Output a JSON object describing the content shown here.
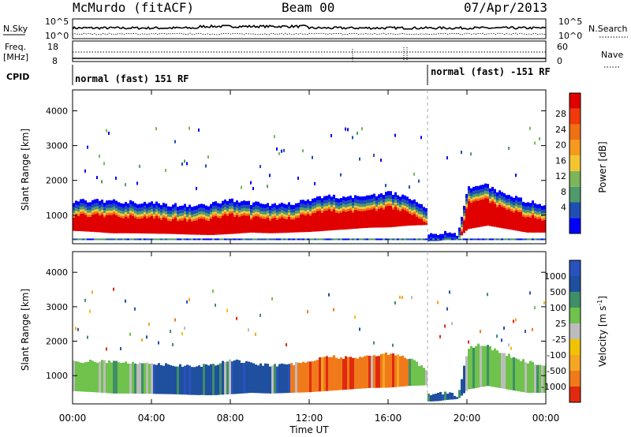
{
  "header": {
    "station": "McMurdo (fitACF)",
    "beam": "Beam 00",
    "date": "07/Apr/2013"
  },
  "top_panels": {
    "nsky_label": "N.Sky",
    "nsky_ticks": [
      "10^5",
      "10^0"
    ],
    "nsearch_label": "N.Search",
    "nsearch_ticks": [
      "10^5",
      "10^0"
    ],
    "freq_label": "Freq.",
    "freq_unit": "[MHz]",
    "freq_ticks": [
      "18",
      "8"
    ],
    "nave_label": "Nave",
    "nave_ticks": [
      "60",
      "0"
    ],
    "cpid_label": "CPID",
    "cpid_segments": [
      {
        "text": "normal (fast) 151 RF",
        "start_hour": 0,
        "end_hour": 18
      },
      {
        "text": "normal (fast) -151 RF",
        "start_hour": 18,
        "end_hour": 24
      }
    ]
  },
  "colorbars": {
    "power": {
      "label": "Power [dB]",
      "ticks": [
        "28",
        "24",
        "20",
        "16",
        "12",
        "8",
        "4"
      ],
      "colors": [
        "#0000ff",
        "#1f4fb0",
        "#4e9a6a",
        "#7db55a",
        "#f2c531",
        "#f59a1e",
        "#f07014",
        "#f03a0a",
        "#e00000"
      ]
    },
    "velocity": {
      "label": "Velocity [m s",
      "label_sup": "-1",
      "label_end": "]",
      "ticks": [
        "1000",
        "500",
        "100",
        "25",
        "-25",
        "-100",
        "-500",
        "-1000"
      ],
      "colors": [
        "#2a52be",
        "#1f4f9f",
        "#3e8f66",
        "#6fc24c",
        "#bcbcbc",
        "#f0c200",
        "#f5a623",
        "#f07a1a",
        "#e02a10"
      ]
    }
  },
  "x_axis_label": "Time UT",
  "chart_data": [
    {
      "type": "heatmap",
      "panel": "power",
      "ylabel": "Slant Range [km]",
      "xlabel": "",
      "x_range": [
        0,
        24
      ],
      "ylim": [
        180,
        4600
      ],
      "yticks": [
        "4000",
        "3000",
        "2000",
        "1000"
      ],
      "xticks": [
        "00:00",
        "04:00",
        "08:00",
        "12:00",
        "16:00",
        "20:00",
        "00:00"
      ],
      "band": {
        "hours": [
          0,
          1,
          2,
          3,
          4,
          5,
          6,
          7,
          8,
          9,
          10,
          11,
          12,
          13,
          14,
          15,
          16,
          17,
          17.9
        ],
        "lower_km": [
          550,
          520,
          480,
          480,
          470,
          460,
          440,
          430,
          460,
          500,
          480,
          500,
          520,
          560,
          600,
          640,
          650,
          700,
          720
        ],
        "upper_km": [
          1400,
          1420,
          1400,
          1380,
          1350,
          1300,
          1280,
          1320,
          1450,
          1350,
          1300,
          1320,
          1450,
          1550,
          1520,
          1550,
          1650,
          1500,
          1200
        ]
      },
      "band2": {
        "hours": [
          18,
          18.5,
          19,
          19.5,
          20,
          20.5,
          21,
          21.5,
          22,
          22.5,
          23,
          23.5,
          24
        ],
        "lower_km": [
          250,
          260,
          300,
          320,
          600,
          650,
          700,
          650,
          600,
          550,
          500,
          500,
          500
        ],
        "upper_km": [
          450,
          480,
          500,
          420,
          1800,
          1900,
          1850,
          1700,
          1600,
          1500,
          1400,
          1350,
          1300
        ]
      }
    },
    {
      "type": "heatmap",
      "panel": "velocity",
      "ylabel": "Slant Range [km]",
      "xlabel": "Time UT",
      "x_range": [
        0,
        24
      ],
      "ylim": [
        180,
        4600
      ],
      "yticks": [
        "4000",
        "3000",
        "2000",
        "1000"
      ],
      "xticks": [
        "00:00",
        "04:00",
        "08:00",
        "12:00",
        "16:00",
        "20:00",
        "00:00"
      ],
      "segments": [
        {
          "start_hour": 0,
          "end_hour": 4,
          "dominant": "100"
        },
        {
          "start_hour": 4,
          "end_hour": 11,
          "dominant": "500"
        },
        {
          "start_hour": 11,
          "end_hour": 17,
          "dominant": "-100"
        },
        {
          "start_hour": 17,
          "end_hour": 18,
          "dominant": "100"
        },
        {
          "start_hour": 18,
          "end_hour": 20,
          "dominant": "500"
        },
        {
          "start_hour": 20,
          "end_hour": 24,
          "dominant": "100"
        }
      ]
    }
  ]
}
